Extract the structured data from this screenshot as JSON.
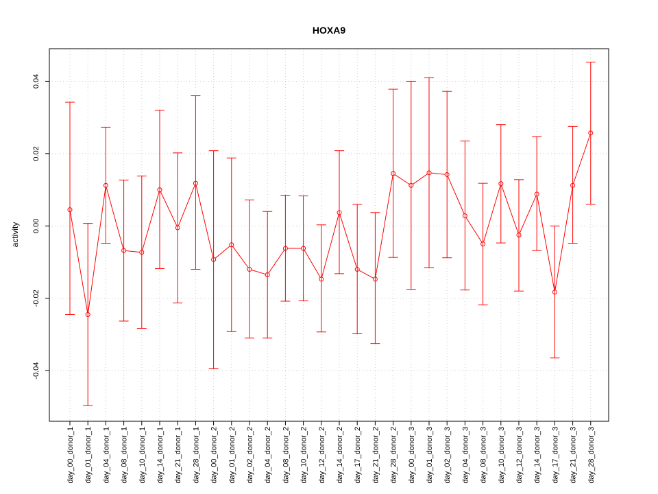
{
  "chart_data": {
    "type": "line",
    "title": "HOXA9",
    "xlabel": "",
    "ylabel": "activity",
    "ylim": [
      -0.054,
      0.049
    ],
    "yticks": [
      -0.04,
      -0.02,
      0.0,
      0.02,
      0.04
    ],
    "ytick_labels": [
      "-0.04",
      "-0.02",
      "0.00",
      "0.02",
      "0.04"
    ],
    "grid": true,
    "color": "#ff0000",
    "categories": [
      "day_00_donor_1",
      "day_01_donor_1",
      "day_04_donor_1",
      "day_08_donor_1",
      "day_10_donor_1",
      "day_14_donor_1",
      "day_21_donor_1",
      "day_28_donor_1",
      "day_00_donor_2",
      "day_01_donor_2",
      "day_02_donor_2",
      "day_04_donor_2",
      "day_08_donor_2",
      "day_10_donor_2",
      "day_12_donor_2",
      "day_14_donor_2",
      "day_17_donor_2",
      "day_21_donor_2",
      "day_28_donor_2",
      "day_00_donor_3",
      "day_01_donor_3",
      "day_02_donor_3",
      "day_04_donor_3",
      "day_08_donor_3",
      "day_10_donor_3",
      "day_12_donor_3",
      "day_14_donor_3",
      "day_17_donor_3",
      "day_21_donor_3",
      "day_28_donor_3"
    ],
    "values": [
      0.0045,
      -0.0245,
      0.0112,
      -0.0068,
      -0.0073,
      0.01,
      -0.0005,
      0.0118,
      -0.0093,
      -0.0052,
      -0.012,
      -0.0135,
      -0.0062,
      -0.0062,
      -0.0147,
      0.0037,
      -0.012,
      -0.0147,
      0.0145,
      0.0112,
      0.0147,
      0.0142,
      0.0028,
      -0.005,
      0.0117,
      -0.0025,
      0.0088,
      -0.0183,
      0.0112,
      0.0257
    ],
    "upper": [
      0.0342,
      0.0007,
      0.0273,
      0.0127,
      0.0138,
      0.032,
      0.0202,
      0.036,
      0.0208,
      0.0188,
      0.0072,
      0.004,
      0.0085,
      0.0083,
      0.0003,
      0.0208,
      0.006,
      0.0037,
      0.0378,
      0.04,
      0.041,
      0.0372,
      0.0235,
      0.0118,
      0.028,
      0.0128,
      0.0247,
      0.0,
      0.0275,
      0.0453
    ],
    "lower": [
      -0.0245,
      -0.0497,
      -0.0048,
      -0.0263,
      -0.0283,
      -0.0118,
      -0.0213,
      -0.012,
      -0.0395,
      -0.0292,
      -0.031,
      -0.031,
      -0.0208,
      -0.0207,
      -0.0293,
      -0.0132,
      -0.0298,
      -0.0325,
      -0.0087,
      -0.0175,
      -0.0115,
      -0.0088,
      -0.0177,
      -0.0218,
      -0.0047,
      -0.018,
      -0.0068,
      -0.0365,
      -0.0048,
      0.006
    ]
  }
}
